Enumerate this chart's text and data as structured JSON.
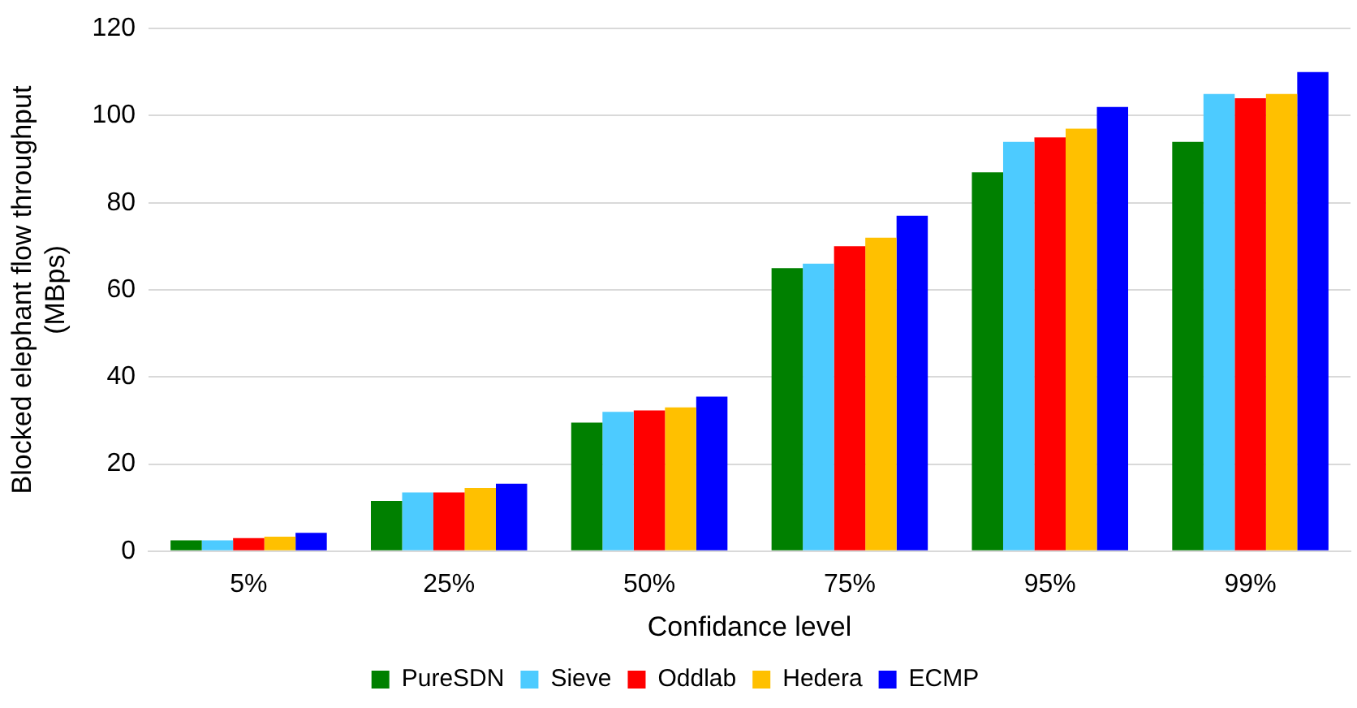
{
  "chart_data": {
    "type": "bar",
    "xlabel": "Confidance level",
    "ylabel": "Blocked elephant flow throughput (MBps)",
    "categories": [
      "5%",
      "25%",
      "50%",
      "75%",
      "95%",
      "99%"
    ],
    "series": [
      {
        "name": "PureSDN",
        "color": "#008000",
        "values": [
          2.5,
          11.5,
          29.5,
          65,
          87,
          94
        ]
      },
      {
        "name": "Sieve",
        "color": "#4dcbff",
        "values": [
          2.5,
          13.5,
          32,
          66,
          94,
          105
        ]
      },
      {
        "name": "Oddlab",
        "color": "#ff0000",
        "values": [
          3,
          13.5,
          32.3,
          70,
          95,
          104
        ]
      },
      {
        "name": "Hedera",
        "color": "#ffc000",
        "values": [
          3.3,
          14.5,
          33,
          72,
          97,
          105
        ]
      },
      {
        "name": "ECMP",
        "color": "#0000ff",
        "values": [
          4.2,
          15.5,
          35.5,
          77,
          102,
          110
        ]
      }
    ],
    "ylim": [
      0,
      120
    ],
    "yticks": [
      0,
      20,
      40,
      60,
      80,
      100,
      120
    ],
    "grid": "y",
    "legend": "bottom"
  }
}
